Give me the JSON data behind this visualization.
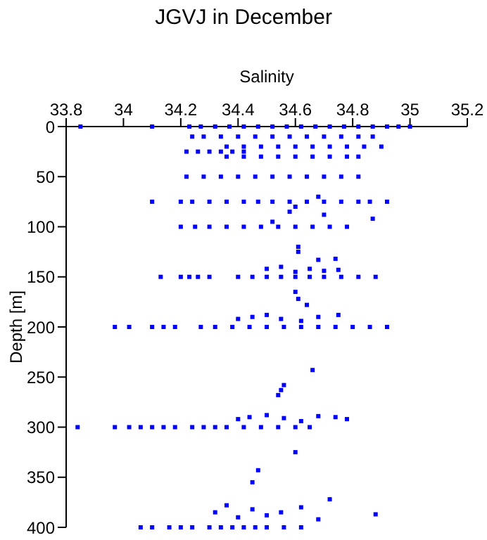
{
  "chart_data": {
    "type": "scatter",
    "title": "JGVJ in December",
    "xlabel": "Salinity",
    "ylabel": "Depth [m]",
    "xlim": [
      33.8,
      35.2
    ],
    "xticks": [
      33.8,
      34,
      34.2,
      34.4,
      34.6,
      34.8,
      35,
      35.2
    ],
    "ylim": [
      400,
      0
    ],
    "yticks": [
      0,
      50,
      100,
      150,
      200,
      250,
      300,
      350,
      400
    ],
    "marker": "square",
    "grid": false,
    "series": [
      {
        "color": "#0000ff",
        "x": [
          33.85,
          34.1,
          34.23,
          34.27,
          34.32,
          34.37,
          34.42,
          34.47,
          34.52,
          34.57,
          34.62,
          34.67,
          34.72,
          34.77,
          34.82,
          34.87,
          34.92,
          34.96,
          35.0,
          34.24,
          34.28,
          34.34,
          34.4,
          34.46,
          34.52,
          34.58,
          34.64,
          34.7,
          34.76,
          34.82,
          34.87,
          34.36,
          34.42,
          34.48,
          34.54,
          34.6,
          34.66,
          34.72,
          34.78,
          34.84,
          34.9,
          34.22,
          34.26,
          34.3,
          34.34,
          34.38,
          34.42,
          34.36,
          34.42,
          34.48,
          34.54,
          34.6,
          34.66,
          34.72,
          34.78,
          34.82,
          34.22,
          34.28,
          34.34,
          34.4,
          34.46,
          34.52,
          34.58,
          34.64,
          34.7,
          34.76,
          34.82,
          34.1,
          34.2,
          34.24,
          34.3,
          34.36,
          34.42,
          34.47,
          34.52,
          34.58,
          34.64,
          34.7,
          34.76,
          34.82,
          34.86,
          34.92,
          34.68,
          34.6,
          34.58,
          34.7,
          34.87,
          34.52,
          34.2,
          34.25,
          34.3,
          34.36,
          34.42,
          34.48,
          34.54,
          34.6,
          34.66,
          34.72,
          34.78,
          34.61,
          34.61,
          34.68,
          34.74,
          34.5,
          34.55,
          34.6,
          34.65,
          34.7,
          34.75,
          34.13,
          34.2,
          34.23,
          34.26,
          34.3,
          34.4,
          34.45,
          34.5,
          34.55,
          34.6,
          34.65,
          34.7,
          34.76,
          34.82,
          34.88,
          34.6,
          34.61,
          34.64,
          34.4,
          34.45,
          34.5,
          34.55,
          34.62,
          34.68,
          34.75,
          33.97,
          34.02,
          34.1,
          34.14,
          34.18,
          34.27,
          34.32,
          34.38,
          34.44,
          34.5,
          34.56,
          34.62,
          34.68,
          34.74,
          34.8,
          34.86,
          34.92,
          34.66,
          34.56,
          34.55,
          34.54,
          34.4,
          34.44,
          34.5,
          34.56,
          34.62,
          34.68,
          34.74,
          34.78,
          33.84,
          33.97,
          34.02,
          34.06,
          34.1,
          34.14,
          34.18,
          34.24,
          34.28,
          34.32,
          34.36,
          34.42,
          34.48,
          34.54,
          34.6,
          34.65,
          34.6,
          34.47,
          34.45,
          34.72,
          34.88,
          34.32,
          34.36,
          34.4,
          34.45,
          34.5,
          34.55,
          34.62,
          34.68,
          34.06,
          34.1,
          34.16,
          34.2,
          34.24,
          34.3,
          34.34,
          34.38,
          34.42,
          34.46,
          34.5,
          34.56,
          34.62
        ],
        "values": [
          0,
          0,
          0,
          0,
          0,
          0,
          0,
          0,
          0,
          0,
          0,
          0,
          0,
          0,
          0,
          0,
          0,
          0,
          0,
          10,
          10,
          10,
          10,
          10,
          10,
          10,
          10,
          10,
          10,
          10,
          10,
          20,
          20,
          20,
          20,
          20,
          20,
          20,
          20,
          20,
          20,
          25,
          25,
          25,
          25,
          25,
          25,
          30,
          30,
          30,
          30,
          30,
          30,
          30,
          30,
          30,
          50,
          50,
          50,
          50,
          50,
          50,
          50,
          50,
          50,
          50,
          50,
          75,
          75,
          75,
          75,
          75,
          75,
          75,
          75,
          75,
          75,
          75,
          75,
          75,
          75,
          75,
          70,
          80,
          85,
          88,
          92,
          95,
          100,
          100,
          100,
          100,
          100,
          100,
          100,
          100,
          100,
          100,
          100,
          120,
          125,
          133,
          132,
          142,
          140,
          145,
          142,
          144,
          143,
          150,
          150,
          150,
          150,
          150,
          150,
          150,
          150,
          150,
          150,
          150,
          150,
          150,
          150,
          150,
          165,
          172,
          178,
          192,
          190,
          188,
          192,
          194,
          190,
          188,
          200,
          200,
          200,
          200,
          200,
          200,
          200,
          200,
          200,
          200,
          200,
          200,
          200,
          200,
          200,
          200,
          200,
          243,
          258,
          263,
          268,
          292,
          290,
          288,
          291,
          294,
          289,
          290,
          292,
          300,
          300,
          300,
          300,
          300,
          300,
          300,
          300,
          300,
          300,
          300,
          300,
          300,
          300,
          300,
          300,
          325,
          343,
          355,
          372,
          387,
          385,
          378,
          390,
          382,
          388,
          385,
          380,
          392,
          400,
          400,
          400,
          400,
          400,
          400,
          400,
          400,
          400,
          400,
          400,
          400,
          400
        ]
      }
    ]
  }
}
